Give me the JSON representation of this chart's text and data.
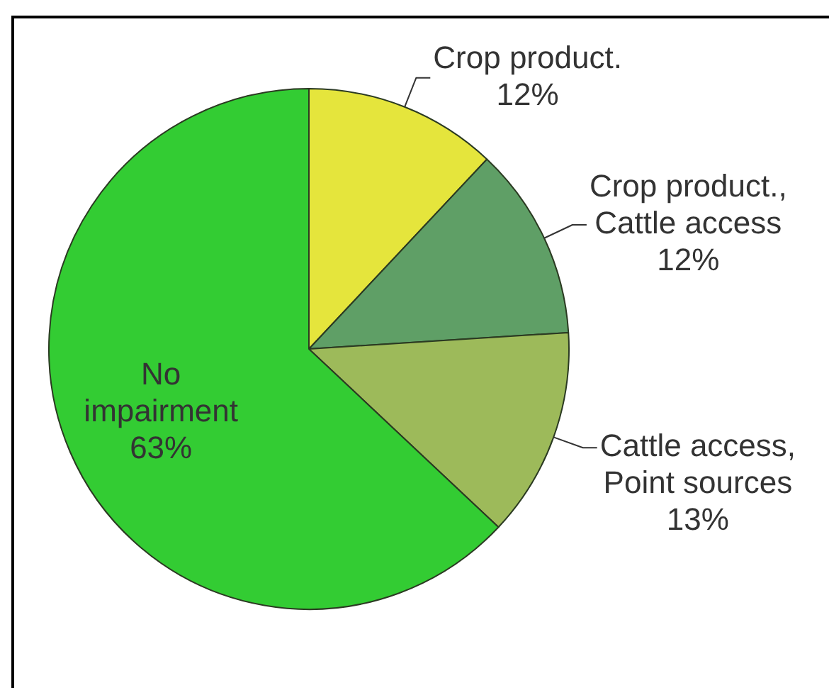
{
  "chart_data": {
    "type": "pie",
    "categories": [
      "Crop product.",
      "Crop product., Cattle access",
      "Cattle access, Point sources",
      "No impairment"
    ],
    "values": [
      12,
      12,
      13,
      63
    ],
    "colors": [
      "#e5e53c",
      "#5f9f66",
      "#9dba5a",
      "#33cc33"
    ],
    "value_labels": [
      "12%",
      "12%",
      "13%",
      "63%"
    ]
  }
}
